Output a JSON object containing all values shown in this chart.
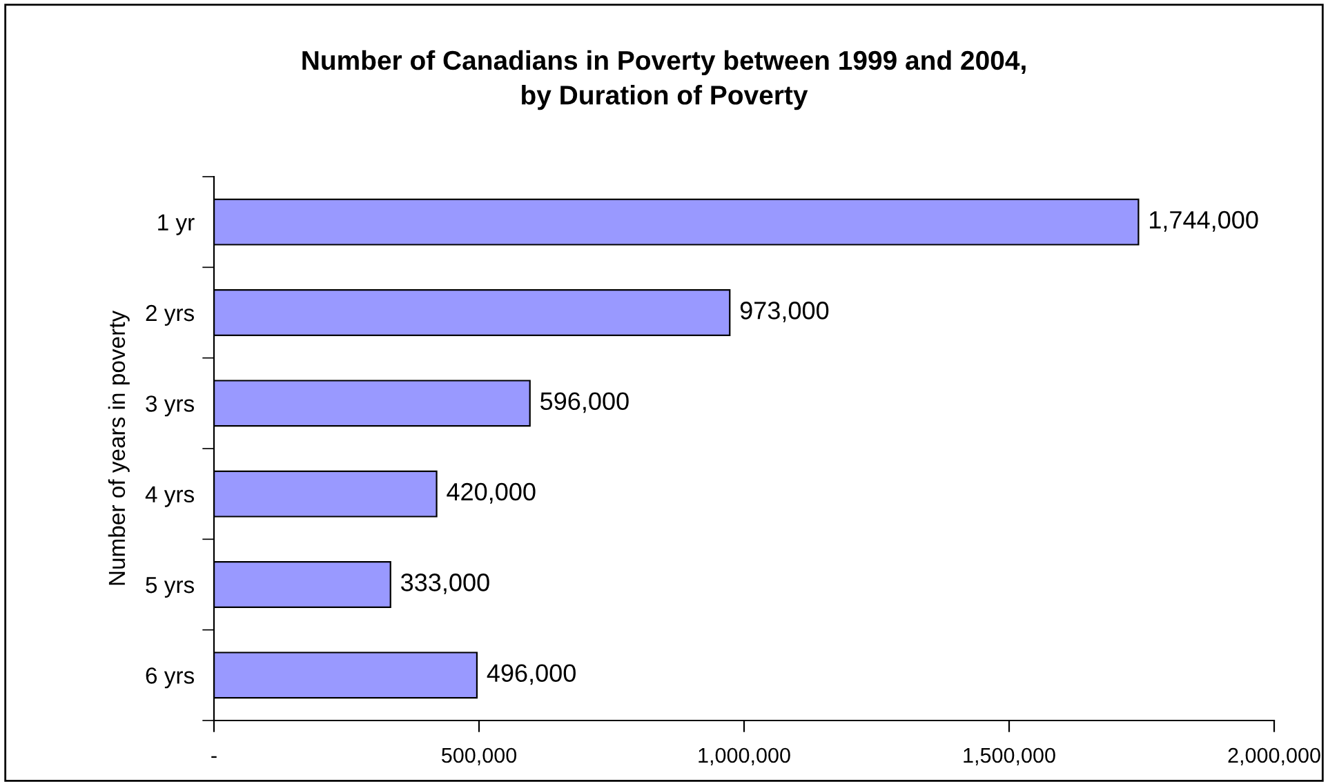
{
  "chart_data": {
    "type": "bar",
    "orientation": "horizontal",
    "title": "Number of Canadians in Poverty between 1999 and 2004,\nby Duration of Poverty",
    "ylabel": "Number of years in poverty",
    "categories": [
      "1 yr",
      "2 yrs",
      "3 yrs",
      "4 yrs",
      "5 yrs",
      "6 yrs"
    ],
    "values": [
      1744000,
      973000,
      596000,
      420000,
      333000,
      496000
    ],
    "value_labels": [
      "1,744,000",
      "973,000",
      "596,000",
      "420,000",
      "333,000",
      "496,000"
    ],
    "color": "#9999ff",
    "xlim": [
      0,
      2000000
    ],
    "xticks": [
      {
        "value": 0,
        "label": "-"
      },
      {
        "value": 500000,
        "label": "500,000"
      },
      {
        "value": 1000000,
        "label": "1,000,000"
      },
      {
        "value": 1500000,
        "label": "1,500,000"
      },
      {
        "value": 2000000,
        "label": "2,000,000"
      }
    ],
    "grid": false,
    "legend": false
  }
}
